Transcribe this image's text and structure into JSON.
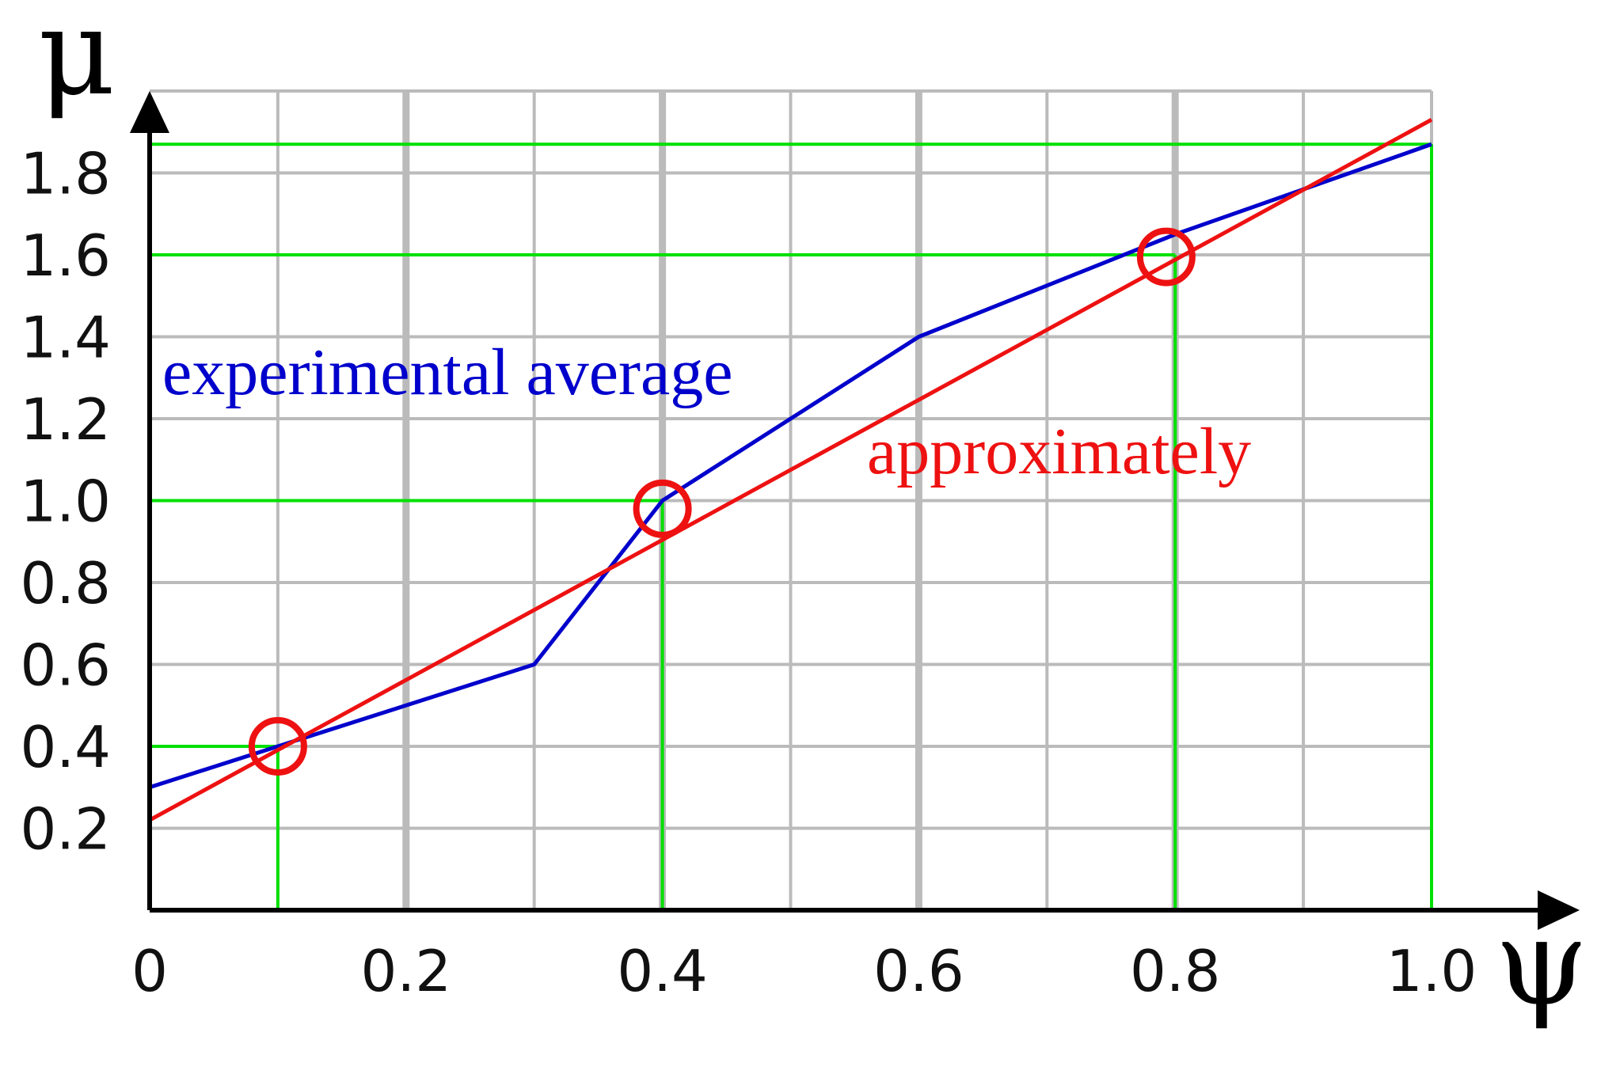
{
  "chart_data": {
    "type": "line",
    "xlabel": "ψ",
    "ylabel": "μ",
    "xlim": [
      0,
      1.0
    ],
    "ylim": [
      0,
      2.0
    ],
    "x_ticks": [
      {
        "value": 0,
        "label": "0"
      },
      {
        "value": 0.2,
        "label": "0.2"
      },
      {
        "value": 0.4,
        "label": "0.4"
      },
      {
        "value": 0.6,
        "label": "0.6"
      },
      {
        "value": 0.8,
        "label": "0.8"
      },
      {
        "value": 1.0,
        "label": "1.0"
      }
    ],
    "y_ticks": [
      {
        "value": 0.2,
        "label": "0.2"
      },
      {
        "value": 0.4,
        "label": "0.4"
      },
      {
        "value": 0.6,
        "label": "0.6"
      },
      {
        "value": 0.8,
        "label": "0.8"
      },
      {
        "value": 1.0,
        "label": "1.0"
      },
      {
        "value": 1.2,
        "label": "1.2"
      },
      {
        "value": 1.4,
        "label": "1.4"
      },
      {
        "value": 1.6,
        "label": "1.6"
      },
      {
        "value": 1.8,
        "label": "1.8"
      }
    ],
    "grid": true,
    "grid_minor_step_x": 0.1,
    "grid_minor_step_y": 0.2,
    "series": [
      {
        "name": "experimental average",
        "color": "#0000cc",
        "points": [
          {
            "x": 0,
            "y": 0.3
          },
          {
            "x": 0.1,
            "y": 0.4
          },
          {
            "x": 0.3,
            "y": 0.6
          },
          {
            "x": 0.4,
            "y": 1.0
          },
          {
            "x": 0.6,
            "y": 1.4
          },
          {
            "x": 0.8,
            "y": 1.65
          },
          {
            "x": 1.0,
            "y": 1.87
          }
        ]
      },
      {
        "name": "approximately",
        "color": "#ee1111",
        "points": [
          {
            "x": 0,
            "y": 0.22
          },
          {
            "x": 1.0,
            "y": 1.93
          }
        ]
      }
    ],
    "reference_points": [
      {
        "x": 0.1,
        "y": 0.4
      },
      {
        "x": 0.4,
        "y": 1.0
      },
      {
        "x": 0.8,
        "y": 1.6
      },
      {
        "x": 1.0,
        "y": 1.87
      }
    ],
    "highlighted_points": [
      {
        "x": 0.1,
        "y": 0.4
      },
      {
        "x": 0.4,
        "y": 0.98
      },
      {
        "x": 0.793,
        "y": 1.595
      }
    ],
    "colors": {
      "grid": "#bbbbbb",
      "reference": "#00e000",
      "highlight": "#ee1111",
      "axis": "#000000"
    }
  }
}
